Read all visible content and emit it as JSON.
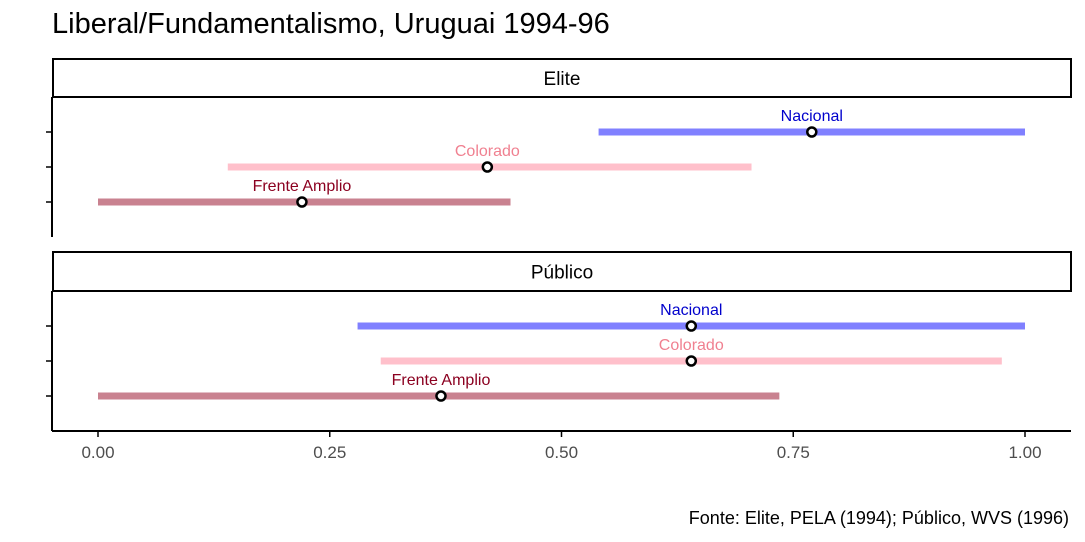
{
  "chart_data": {
    "type": "interval",
    "title": "Liberal/Fundamentalismo, Uruguai 1994-96",
    "caption": "Fonte: Elite, PELA (1994); Público, WVS (1996)",
    "xlim": [
      -0.05,
      1.05
    ],
    "x_ticks": [
      "0.00",
      "0.25",
      "0.50",
      "0.75",
      "1.00"
    ],
    "x_tick_values": [
      0,
      0.25,
      0.5,
      0.75,
      1.0
    ],
    "colors": {
      "Nacional": {
        "line": "#8080ff",
        "label": "#0000cc"
      },
      "Colorado": {
        "line": "#ffc0cb",
        "label": "#f08090"
      },
      "Frente Amplio": {
        "line": "#c98290",
        "label": "#8b0020"
      }
    },
    "panels": [
      {
        "name": "Elite",
        "series": [
          {
            "name": "Nacional",
            "low": 0.54,
            "high": 1.0,
            "point": 0.77
          },
          {
            "name": "Colorado",
            "low": 0.14,
            "high": 0.705,
            "point": 0.42
          },
          {
            "name": "Frente Amplio",
            "low": 0.0,
            "high": 0.445,
            "point": 0.22
          }
        ]
      },
      {
        "name": "Público",
        "series": [
          {
            "name": "Nacional",
            "low": 0.28,
            "high": 1.0,
            "point": 0.64
          },
          {
            "name": "Colorado",
            "low": 0.305,
            "high": 0.975,
            "point": 0.64
          },
          {
            "name": "Frente Amplio",
            "low": 0.0,
            "high": 0.735,
            "point": 0.37
          }
        ]
      }
    ]
  }
}
